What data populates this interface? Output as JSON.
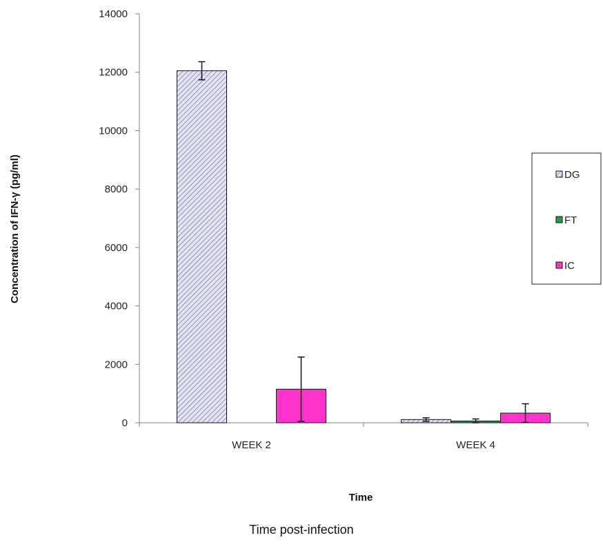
{
  "chart_data": {
    "type": "bar",
    "categories": [
      "WEEK 2",
      "WEEK 4"
    ],
    "series": [
      {
        "name": "DG",
        "values": [
          12050,
          110
        ],
        "errors": [
          310,
          60
        ],
        "color": "#d6d6f0",
        "pattern": "diagonal-hatch"
      },
      {
        "name": "FT",
        "values": [
          0,
          60
        ],
        "errors": [
          0,
          70
        ],
        "color": "#1e9e4a"
      },
      {
        "name": "IC",
        "values": [
          1150,
          330
        ],
        "errors": [
          1100,
          320
        ],
        "color": "#ff33cc"
      }
    ],
    "xlabel": "Time",
    "ylabel": "Concentration of IFN-γ (pg/ml)",
    "ylim": [
      0,
      14000
    ],
    "yticks": [
      0,
      2000,
      4000,
      6000,
      8000,
      10000,
      12000,
      14000
    ],
    "legend_position": "right",
    "grid": false
  },
  "caption": "Time post-infection"
}
